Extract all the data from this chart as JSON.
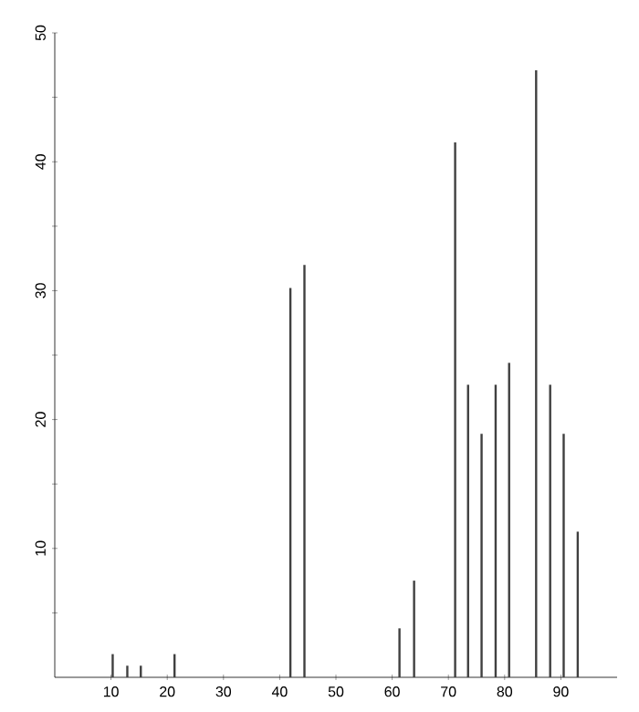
{
  "chart_data": {
    "type": "bar",
    "color": "#404040",
    "x": [
      10.3,
      12.9,
      15.3,
      21.3,
      41.9,
      44.4,
      61.3,
      63.9,
      71.2,
      73.5,
      75.9,
      78.4,
      80.8,
      85.6,
      88.1,
      90.5,
      93
    ],
    "values": [
      1.8,
      0.9,
      0.9,
      1.8,
      30.2,
      32.0,
      3.8,
      7.5,
      41.5,
      22.7,
      18.9,
      22.7,
      24.4,
      47.1,
      22.7,
      18.9,
      11.3
    ],
    "xlim": [
      0,
      100
    ],
    "ylim": [
      0,
      50
    ],
    "xticks": [
      10,
      20,
      30,
      40,
      50,
      60,
      70,
      80,
      90
    ],
    "yticks": [
      {
        "value": 5,
        "label": null
      },
      10,
      {
        "value": 15,
        "label": null
      },
      20,
      {
        "value": 25,
        "label": null
      },
      30,
      {
        "value": 35,
        "label": null
      },
      40,
      {
        "value": 45,
        "label": null
      },
      50
    ],
    "grid": false
  }
}
